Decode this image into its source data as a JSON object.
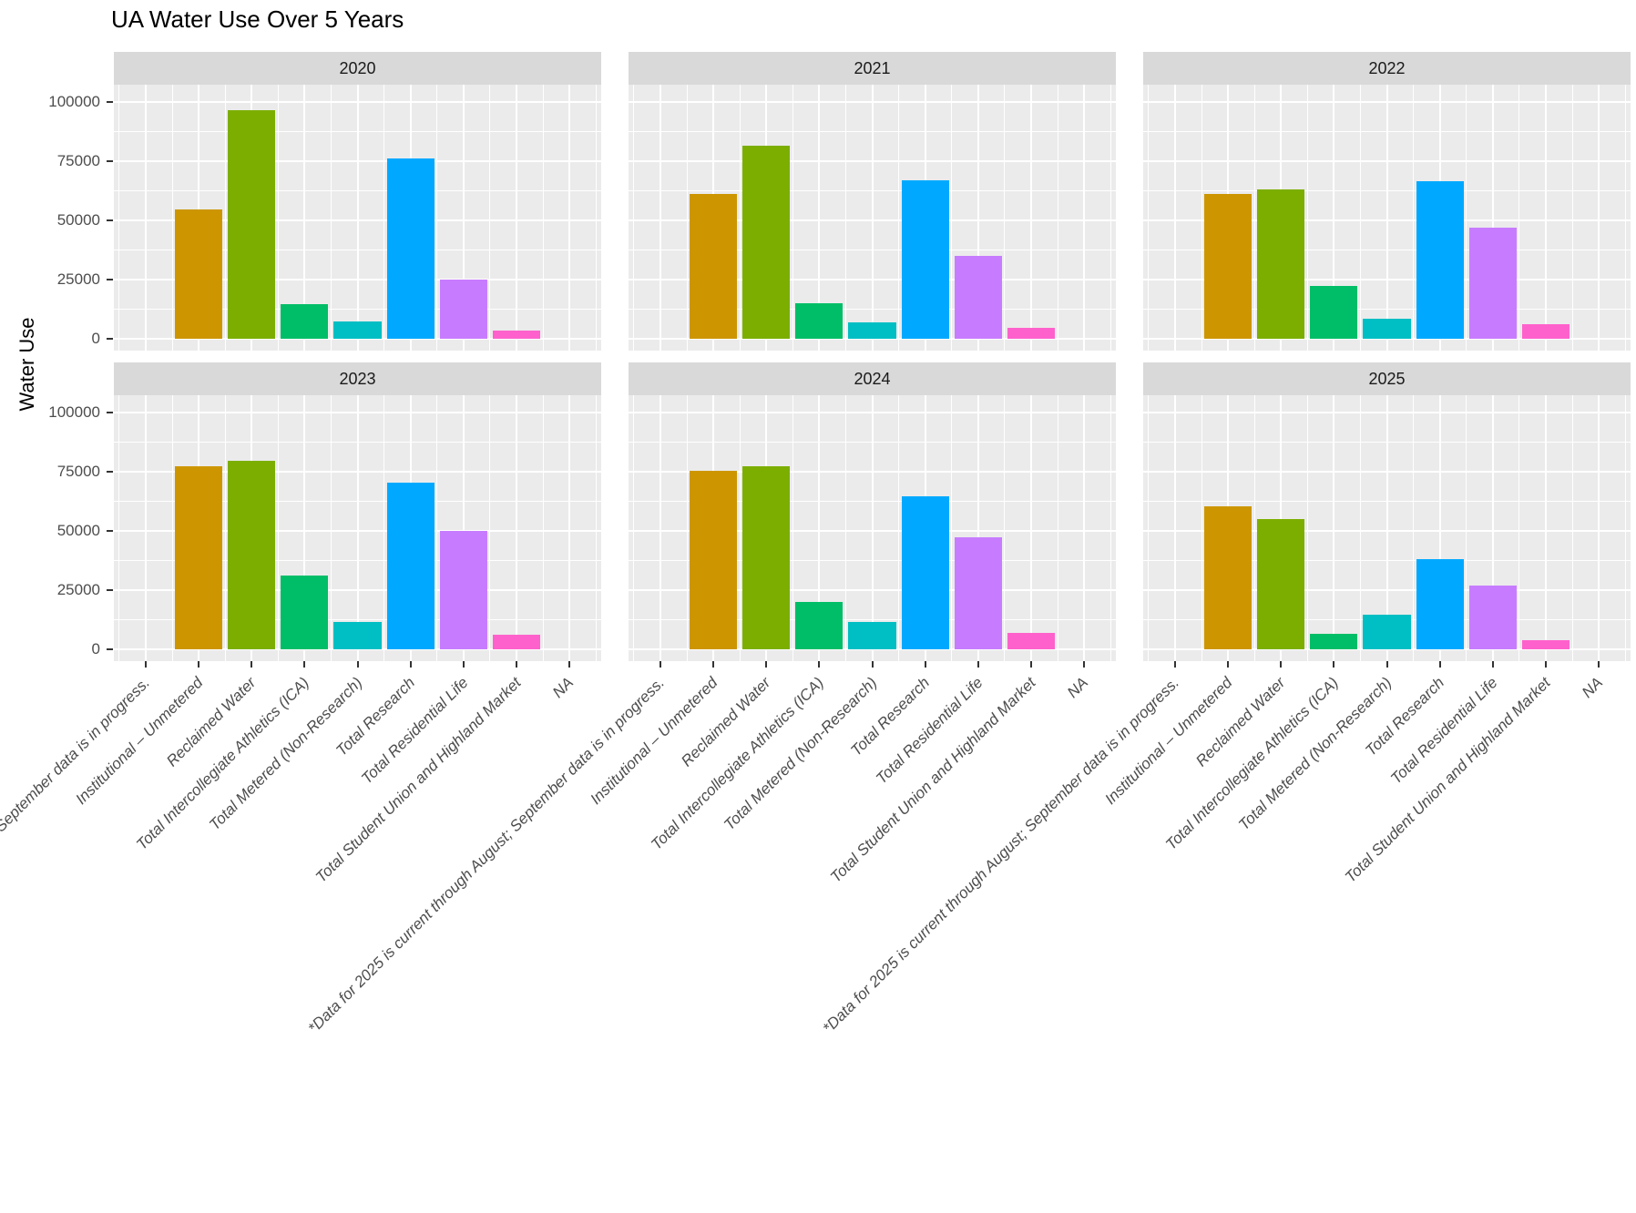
{
  "title": "UA Water Use Over 5 Years",
  "y_axis": {
    "label": "Water Use",
    "tick_labels": [
      "0",
      "25000",
      "50000",
      "75000",
      "100000"
    ]
  },
  "chart_data": {
    "type": "bar",
    "title": "UA Water Use Over 5 Years",
    "xlabel": "",
    "ylabel": "Water Use",
    "ylim": [
      0,
      100000
    ],
    "yticks": [
      0,
      25000,
      50000,
      75000,
      100000
    ],
    "grid": true,
    "legend": false,
    "facet_layout": "2 rows x 3 cols",
    "facets": [
      "2020",
      "2021",
      "2022",
      "2023",
      "2024",
      "2025"
    ],
    "categories": [
      "*Data for 2025 is current through August; September data is in progress.",
      "Institutional – Unmetered",
      "Reclaimed Water",
      "Total Intercollegiate Athletics (ICA)",
      "Total Metered (Non-Research)",
      "Total Research",
      "Total Residential Life",
      "Total Student Union and Highland Market",
      "NA"
    ],
    "bar_colors": [
      "#F8766D",
      "#CD9600",
      "#7CAE00",
      "#00BE67",
      "#00BFC4",
      "#00A9FF",
      "#C77CFF",
      "#FF61CC",
      "#7F7F7F"
    ],
    "series": [
      {
        "name": "2020",
        "values": [
          null,
          54500,
          96500,
          14500,
          7500,
          76000,
          25000,
          3500,
          null
        ]
      },
      {
        "name": "2021",
        "values": [
          null,
          61000,
          81500,
          15000,
          7000,
          67000,
          35000,
          4500,
          null
        ]
      },
      {
        "name": "2022",
        "values": [
          null,
          61000,
          63000,
          22500,
          8500,
          66500,
          47000,
          6000,
          null
        ]
      },
      {
        "name": "2023",
        "values": [
          null,
          77500,
          79500,
          31000,
          11500,
          70500,
          50000,
          6000,
          null
        ]
      },
      {
        "name": "2024",
        "values": [
          null,
          75500,
          77500,
          20000,
          11500,
          64500,
          47500,
          7000,
          null
        ]
      },
      {
        "name": "2025",
        "values": [
          null,
          60500,
          55000,
          6500,
          14500,
          38000,
          27000,
          4000,
          null
        ]
      }
    ]
  },
  "styles": {
    "panel_bg": "#EBEBEB",
    "strip_bg": "#D9D9D9",
    "grid_color": "#FFFFFF",
    "axis_text_color": "#4D4D4D",
    "strip_text_color": "#1A1A1A",
    "title_color": "#000000",
    "tick_mark_color": "#333333"
  }
}
